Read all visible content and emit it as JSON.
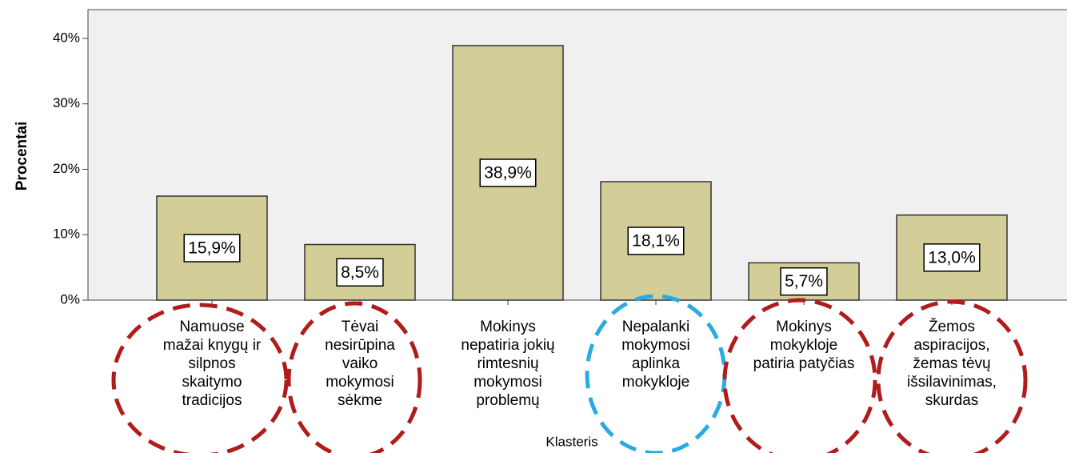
{
  "chart_data": {
    "type": "bar",
    "x_label": "Klasteris",
    "y_label": "Procentai",
    "categories": [
      "Namuose\nmažai knygų ir\nsilpnos\nskaitymo\ntradicijos",
      "Tėvai\nnesirūpina\nvaiko\nmokymosi\nsėkme",
      "Mokinys\nnepatiria jokių\nrimtesnių\nmokymosi\nproblemų",
      "Nepalanki\nmokymosi\naplinka\nmokykloje",
      "Mokinys\nmokykloje\npatiria patyčias",
      "Žemos\naspiracijos,\nžemas tėvų\nišsilavinimas,\nskurdas"
    ],
    "values": [
      15.9,
      8.5,
      38.9,
      18.1,
      5.7,
      13.0
    ],
    "value_labels": [
      "15,9%",
      "8,5%",
      "38,9%",
      "18,1%",
      "5,7%",
      "13,0%"
    ],
    "color": "#d3ce98",
    "ylim": [
      0,
      44.4
    ],
    "yticks": [
      {
        "value": 0,
        "label": "0%"
      },
      {
        "value": 10,
        "label": "10%"
      },
      {
        "value": 20,
        "label": "20%"
      },
      {
        "value": 30,
        "label": "30%"
      },
      {
        "value": 40,
        "label": "40%"
      }
    ]
  }
}
